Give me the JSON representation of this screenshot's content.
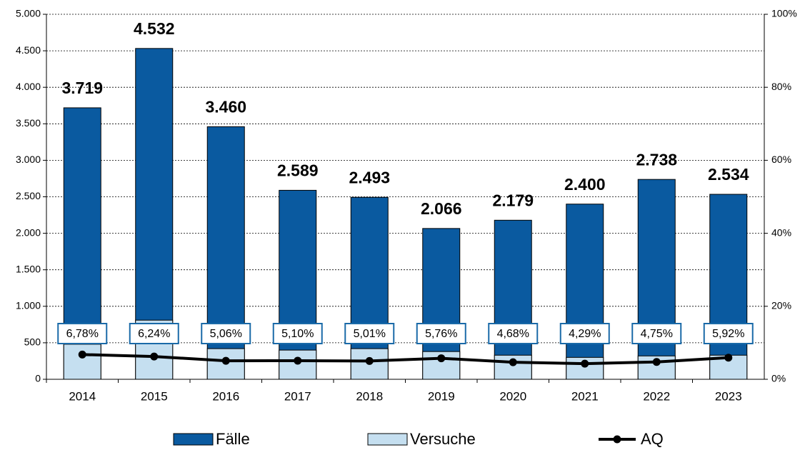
{
  "chart_data": {
    "type": "bar",
    "categories": [
      "2014",
      "2015",
      "2016",
      "2017",
      "2018",
      "2019",
      "2020",
      "2021",
      "2022",
      "2023"
    ],
    "series": [
      {
        "name": "Fälle",
        "color": "#0a5aa0",
        "values": [
          3719,
          4532,
          3460,
          2589,
          2493,
          2066,
          2179,
          2400,
          2738,
          2534
        ],
        "value_labels": [
          "3.719",
          "4.532",
          "3.460",
          "2.589",
          "2.493",
          "2.066",
          "2.179",
          "2.400",
          "2.738",
          "2.534"
        ]
      },
      {
        "name": "Versuche",
        "color": "#c5dff0",
        "values": [
          480,
          810,
          420,
          400,
          420,
          380,
          330,
          300,
          320,
          330
        ]
      },
      {
        "name": "AQ",
        "type": "line",
        "axis": "y2",
        "color": "#000000",
        "values": [
          6.78,
          6.24,
          5.06,
          5.1,
          5.01,
          5.76,
          4.68,
          4.29,
          4.75,
          5.92
        ],
        "value_labels": [
          "6,78%",
          "6,24%",
          "5,06%",
          "5,10%",
          "5,01%",
          "5,76%",
          "4,68%",
          "4,29%",
          "4,75%",
          "5,92%"
        ]
      }
    ],
    "ylim": [
      0,
      5000
    ],
    "yticks": [
      0,
      {
        "value": 500,
        "label": "500"
      },
      {
        "value": 1000,
        "label": "1.000"
      },
      {
        "value": 1500,
        "label": "1.500"
      },
      {
        "value": 2000,
        "label": "2.000"
      },
      {
        "value": 2500,
        "label": "2.500"
      },
      {
        "value": 3000,
        "label": "3.000"
      },
      {
        "value": 3500,
        "label": "3.500"
      },
      {
        "value": 4000,
        "label": "4.000"
      },
      {
        "value": 4500,
        "label": "4.500"
      },
      {
        "value": 5000,
        "label": "5.000"
      }
    ],
    "y2lim": [
      0,
      100
    ],
    "y2ticks": [
      {
        "value": 0,
        "label": "0%"
      },
      {
        "value": 20,
        "label": "20%"
      },
      {
        "value": 40,
        "label": "40%"
      },
      {
        "value": 60,
        "label": "60%"
      },
      {
        "value": 80,
        "label": "80%"
      },
      {
        "value": 100,
        "label": "100%"
      }
    ],
    "grid": true,
    "legend": "bottom"
  }
}
